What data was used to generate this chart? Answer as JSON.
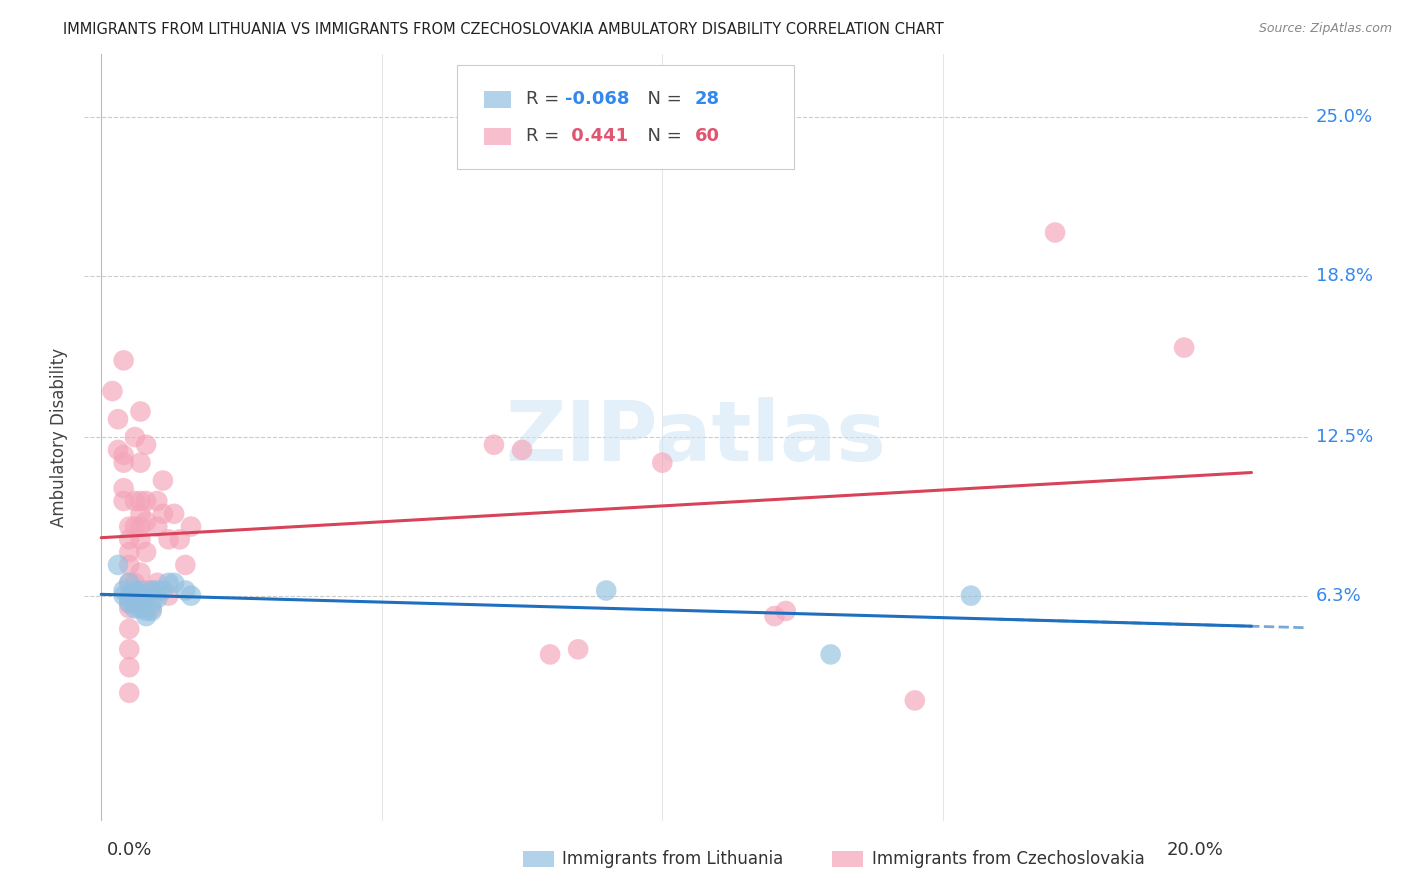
{
  "title": "IMMIGRANTS FROM LITHUANIA VS IMMIGRANTS FROM CZECHOSLOVAKIA AMBULATORY DISABILITY CORRELATION CHART",
  "source": "Source: ZipAtlas.com",
  "ylabel": "Ambulatory Disability",
  "ytick_labels": [
    "6.3%",
    "12.5%",
    "18.8%",
    "25.0%"
  ],
  "ytick_values": [
    0.063,
    0.125,
    0.188,
    0.25
  ],
  "xlim": [
    -0.003,
    0.215
  ],
  "ylim": [
    -0.025,
    0.275
  ],
  "blue_color": "#92c0e0",
  "pink_color": "#f4a4b8",
  "blue_line_color": "#1f6fbf",
  "pink_line_color": "#d9435a",
  "blue_scatter": [
    [
      0.003,
      0.075
    ],
    [
      0.004,
      0.065
    ],
    [
      0.004,
      0.063
    ],
    [
      0.005,
      0.068
    ],
    [
      0.005,
      0.062
    ],
    [
      0.005,
      0.06
    ],
    [
      0.006,
      0.065
    ],
    [
      0.006,
      0.06
    ],
    [
      0.006,
      0.058
    ],
    [
      0.007,
      0.063
    ],
    [
      0.007,
      0.065
    ],
    [
      0.007,
      0.058
    ],
    [
      0.008,
      0.055
    ],
    [
      0.008,
      0.063
    ],
    [
      0.008,
      0.057
    ],
    [
      0.009,
      0.06
    ],
    [
      0.009,
      0.065
    ],
    [
      0.009,
      0.057
    ],
    [
      0.01,
      0.065
    ],
    [
      0.01,
      0.062
    ],
    [
      0.011,
      0.065
    ],
    [
      0.012,
      0.068
    ],
    [
      0.013,
      0.068
    ],
    [
      0.015,
      0.065
    ],
    [
      0.016,
      0.063
    ],
    [
      0.09,
      0.065
    ],
    [
      0.155,
      0.063
    ],
    [
      0.13,
      0.04
    ]
  ],
  "pink_scatter": [
    [
      0.002,
      0.143
    ],
    [
      0.003,
      0.132
    ],
    [
      0.003,
      0.12
    ],
    [
      0.004,
      0.155
    ],
    [
      0.004,
      0.118
    ],
    [
      0.004,
      0.115
    ],
    [
      0.004,
      0.105
    ],
    [
      0.004,
      0.1
    ],
    [
      0.005,
      0.09
    ],
    [
      0.005,
      0.085
    ],
    [
      0.005,
      0.08
    ],
    [
      0.005,
      0.075
    ],
    [
      0.005,
      0.068
    ],
    [
      0.005,
      0.063
    ],
    [
      0.005,
      0.06
    ],
    [
      0.005,
      0.058
    ],
    [
      0.005,
      0.05
    ],
    [
      0.005,
      0.042
    ],
    [
      0.005,
      0.035
    ],
    [
      0.005,
      0.025
    ],
    [
      0.006,
      0.125
    ],
    [
      0.006,
      0.1
    ],
    [
      0.006,
      0.09
    ],
    [
      0.006,
      0.068
    ],
    [
      0.006,
      0.06
    ],
    [
      0.007,
      0.135
    ],
    [
      0.007,
      0.115
    ],
    [
      0.007,
      0.1
    ],
    [
      0.007,
      0.095
    ],
    [
      0.007,
      0.09
    ],
    [
      0.007,
      0.085
    ],
    [
      0.007,
      0.072
    ],
    [
      0.008,
      0.065
    ],
    [
      0.008,
      0.122
    ],
    [
      0.008,
      0.1
    ],
    [
      0.008,
      0.092
    ],
    [
      0.008,
      0.08
    ],
    [
      0.009,
      0.065
    ],
    [
      0.009,
      0.058
    ],
    [
      0.01,
      0.1
    ],
    [
      0.01,
      0.09
    ],
    [
      0.01,
      0.068
    ],
    [
      0.011,
      0.108
    ],
    [
      0.011,
      0.095
    ],
    [
      0.012,
      0.085
    ],
    [
      0.012,
      0.063
    ],
    [
      0.013,
      0.095
    ],
    [
      0.014,
      0.085
    ],
    [
      0.015,
      0.075
    ],
    [
      0.016,
      0.09
    ],
    [
      0.07,
      0.122
    ],
    [
      0.075,
      0.12
    ],
    [
      0.08,
      0.04
    ],
    [
      0.085,
      0.042
    ],
    [
      0.1,
      0.115
    ],
    [
      0.12,
      0.055
    ],
    [
      0.122,
      0.057
    ],
    [
      0.145,
      0.022
    ],
    [
      0.17,
      0.205
    ],
    [
      0.193,
      0.16
    ]
  ],
  "watermark_text": "ZIPatlas",
  "bottom_legend": [
    {
      "label": "Immigrants from Lithuania",
      "color": "#92c0e0"
    },
    {
      "label": "Immigrants from Czechoslovakia",
      "color": "#f4a4b8"
    }
  ]
}
